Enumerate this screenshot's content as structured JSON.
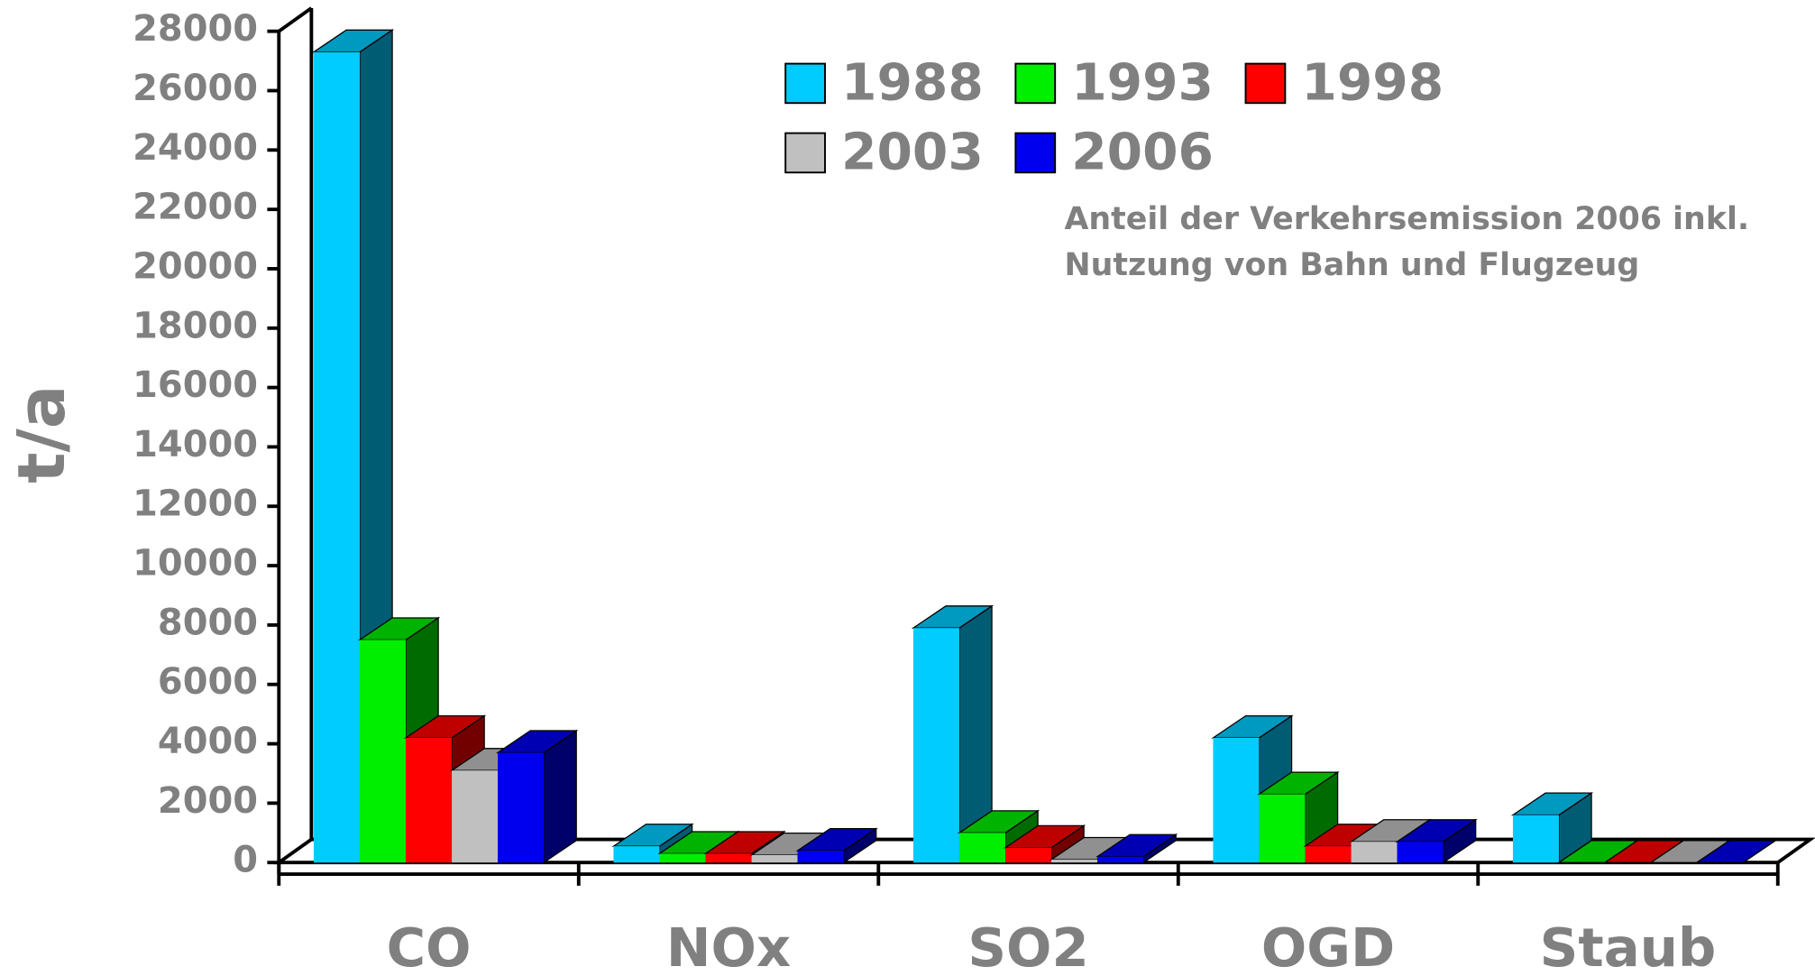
{
  "chart_data": {
    "type": "bar3d",
    "ylabel": "t/a",
    "annotation": [
      "Anteil der Verkehrsemission 2006 inkl.",
      "Nutzung von Bahn und Flugzeug"
    ],
    "categories": [
      "CO",
      "NOx",
      "SO2",
      "OGD",
      "Staub"
    ],
    "series": [
      {
        "name": "1988",
        "color": "#00ccff",
        "values": [
          27300,
          550,
          7900,
          4200,
          1600
        ]
      },
      {
        "name": "1993",
        "color": "#00ee00",
        "values": [
          7500,
          300,
          1000,
          2300,
          0
        ]
      },
      {
        "name": "1998",
        "color": "#ff0000",
        "values": [
          4200,
          300,
          500,
          550,
          0
        ]
      },
      {
        "name": "2003",
        "color": "#c0c0c0",
        "values": [
          3100,
          250,
          100,
          700,
          0
        ]
      },
      {
        "name": "2006",
        "color": "#0000ee",
        "values": [
          3700,
          400,
          200,
          700,
          0
        ]
      }
    ],
    "ylim": [
      0,
      28000
    ],
    "yticks": [
      0,
      2000,
      4000,
      6000,
      8000,
      10000,
      12000,
      14000,
      16000,
      18000,
      20000,
      22000,
      24000,
      26000,
      28000
    ]
  }
}
